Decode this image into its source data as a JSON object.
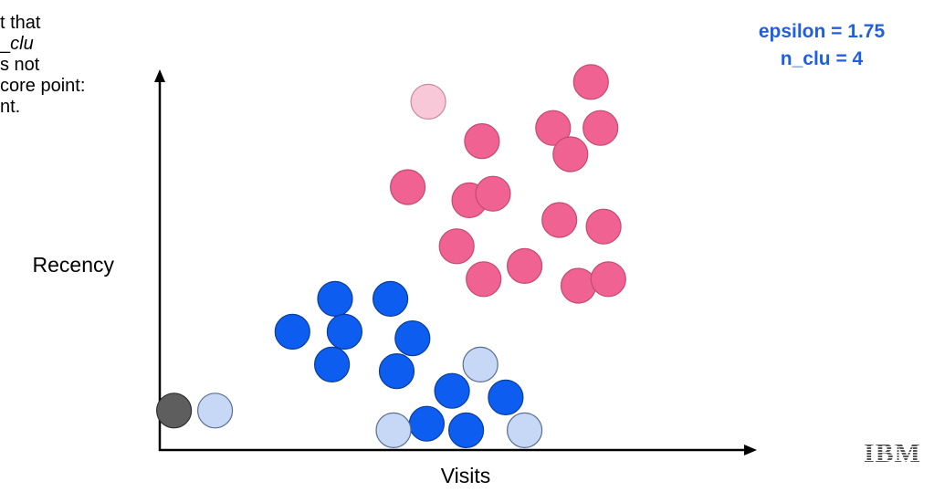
{
  "left_text": [
    {
      "pre": "t that",
      "em": "",
      "post": ""
    },
    {
      "pre": "_",
      "em": "clu",
      "post": ""
    },
    {
      "pre": "s not",
      "em": "",
      "post": ""
    },
    {
      "pre": "core point:",
      "em": "",
      "post": ""
    },
    {
      "pre": "nt.",
      "em": "",
      "post": ""
    }
  ],
  "params": {
    "epsilon": "epsilon = 1.75",
    "n_clu": "n_clu = 4"
  },
  "axes": {
    "y_label": "Recency",
    "x_label": "Visits"
  },
  "logo": {
    "text": "IBM"
  },
  "colors": {
    "core_pink": "#f06292",
    "border_pink": "#f8c8d8",
    "core_blue": "#0d5ef0",
    "border_blue": "#c6d8f5",
    "noise": "#5e5e5e",
    "accent_text": "#1f5fe0"
  },
  "points": [
    {
      "x": 17.0,
      "y": 5.3,
      "kind": "border_pink"
    },
    {
      "x": 27.3,
      "y": 5.6,
      "kind": "core_pink"
    },
    {
      "x": 20.4,
      "y": 4.7,
      "kind": "core_pink"
    },
    {
      "x": 24.9,
      "y": 4.9,
      "kind": "core_pink"
    },
    {
      "x": 27.9,
      "y": 4.9,
      "kind": "core_pink"
    },
    {
      "x": 26.0,
      "y": 4.5,
      "kind": "core_pink"
    },
    {
      "x": 15.7,
      "y": 4.0,
      "kind": "core_pink"
    },
    {
      "x": 19.6,
      "y": 3.8,
      "kind": "core_pink"
    },
    {
      "x": 21.1,
      "y": 3.9,
      "kind": "core_pink"
    },
    {
      "x": 25.3,
      "y": 3.5,
      "kind": "core_pink"
    },
    {
      "x": 28.1,
      "y": 3.4,
      "kind": "core_pink"
    },
    {
      "x": 18.8,
      "y": 3.1,
      "kind": "core_pink"
    },
    {
      "x": 20.5,
      "y": 2.6,
      "kind": "core_pink"
    },
    {
      "x": 23.1,
      "y": 2.8,
      "kind": "core_pink"
    },
    {
      "x": 26.5,
      "y": 2.5,
      "kind": "core_pink"
    },
    {
      "x": 28.4,
      "y": 2.6,
      "kind": "core_pink"
    },
    {
      "x": 11.1,
      "y": 2.3,
      "kind": "core_blue"
    },
    {
      "x": 14.6,
      "y": 2.3,
      "kind": "core_blue"
    },
    {
      "x": 8.4,
      "y": 1.8,
      "kind": "core_blue"
    },
    {
      "x": 11.7,
      "y": 1.8,
      "kind": "core_blue"
    },
    {
      "x": 16.0,
      "y": 1.7,
      "kind": "core_blue"
    },
    {
      "x": 10.9,
      "y": 1.3,
      "kind": "core_blue"
    },
    {
      "x": 15.0,
      "y": 1.2,
      "kind": "core_blue"
    },
    {
      "x": 20.3,
      "y": 1.3,
      "kind": "border_blue"
    },
    {
      "x": 18.5,
      "y": 0.9,
      "kind": "core_blue"
    },
    {
      "x": 21.9,
      "y": 0.8,
      "kind": "core_blue"
    },
    {
      "x": 0.9,
      "y": 0.6,
      "kind": "noise"
    },
    {
      "x": 3.5,
      "y": 0.6,
      "kind": "border_blue"
    },
    {
      "x": 16.9,
      "y": 0.4,
      "kind": "core_blue"
    },
    {
      "x": 14.8,
      "y": 0.3,
      "kind": "border_blue"
    },
    {
      "x": 19.4,
      "y": 0.3,
      "kind": "core_blue"
    },
    {
      "x": 23.1,
      "y": 0.3,
      "kind": "border_blue"
    }
  ]
}
